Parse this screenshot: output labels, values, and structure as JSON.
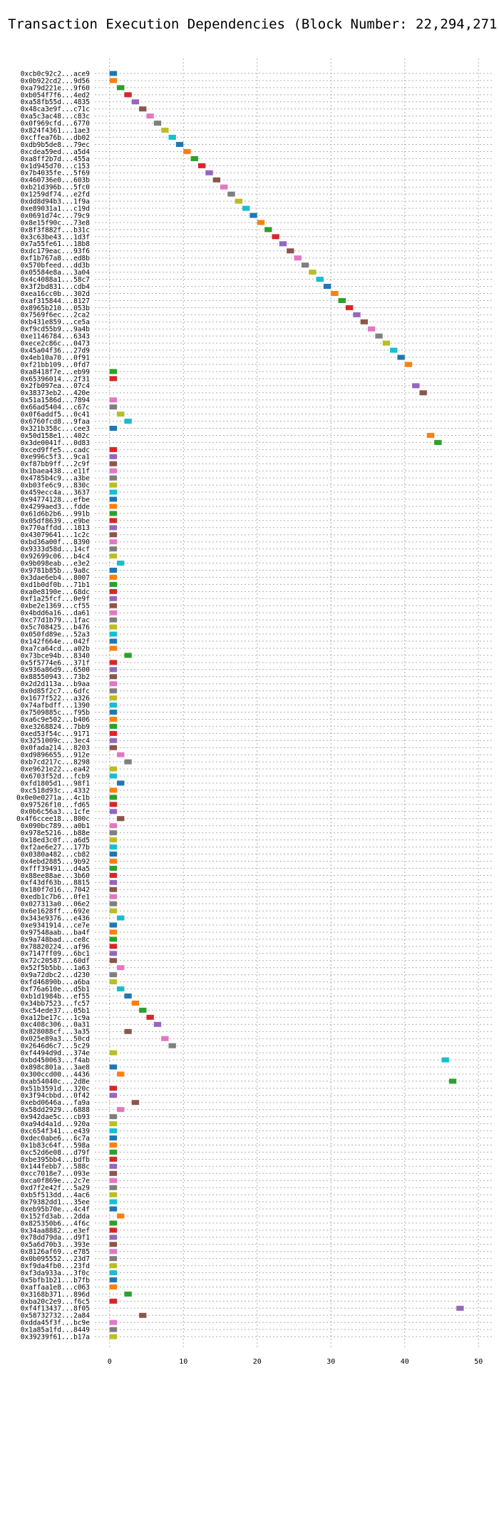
{
  "chart_data": {
    "type": "bar",
    "orientation": "horizontal",
    "title": "Transaction Execution Dependencies (Block Number: 22,294,271)",
    "xlim": [
      -2,
      52
    ],
    "xticks": [
      0,
      10,
      20,
      30,
      40,
      50
    ],
    "grid": true,
    "palette": [
      "#1f77b4",
      "#ff7f0e",
      "#2ca02c",
      "#d62728",
      "#9467bd",
      "#8c564b",
      "#e377c2",
      "#7f7f7f",
      "#bcbd22",
      "#17becf"
    ],
    "bars": [
      {
        "label": "0xcb0c92c2...ace9",
        "start": 0,
        "end": 1
      },
      {
        "label": "0x0b922cd2...9d56",
        "start": 0,
        "end": 1
      },
      {
        "label": "0xa79d221e...9f60",
        "start": 1,
        "end": 2
      },
      {
        "label": "0xb054f7f6...4ed2",
        "start": 2,
        "end": 3
      },
      {
        "label": "0xa58fb55d...4835",
        "start": 3,
        "end": 4
      },
      {
        "label": "0x48ca3e9f...c71c",
        "start": 4,
        "end": 5
      },
      {
        "label": "0xa5c3ac48...c83c",
        "start": 5,
        "end": 6
      },
      {
        "label": "0x0f969cfd...6770",
        "start": 6,
        "end": 7
      },
      {
        "label": "0x824f4361...1ae3",
        "start": 7,
        "end": 8
      },
      {
        "label": "0xcffea76b...db02",
        "start": 8,
        "end": 9
      },
      {
        "label": "0xdb9b5de8...79ec",
        "start": 9,
        "end": 10
      },
      {
        "label": "0xcdea59ed...a5d4",
        "start": 10,
        "end": 11
      },
      {
        "label": "0xa8ff2b7d...455a",
        "start": 11,
        "end": 12
      },
      {
        "label": "0x1d945d70...c153",
        "start": 12,
        "end": 13
      },
      {
        "label": "0x7b4035fe...5f69",
        "start": 13,
        "end": 14
      },
      {
        "label": "0x460736e0...603b",
        "start": 14,
        "end": 15
      },
      {
        "label": "0xb21d396b...5fc0",
        "start": 15,
        "end": 16
      },
      {
        "label": "0x1259df74...e2fd",
        "start": 16,
        "end": 17
      },
      {
        "label": "0xdd8d94b3...1f9a",
        "start": 17,
        "end": 18
      },
      {
        "label": "0xe89031a1...c19d",
        "start": 18,
        "end": 19
      },
      {
        "label": "0x0691d74c...79c9",
        "start": 19,
        "end": 20
      },
      {
        "label": "0x8e15f90c...73e8",
        "start": 20,
        "end": 21
      },
      {
        "label": "0x8f3f882f...b31c",
        "start": 21,
        "end": 22
      },
      {
        "label": "0x3c63be43...1d3f",
        "start": 22,
        "end": 23
      },
      {
        "label": "0x7a55fe61...18b8",
        "start": 23,
        "end": 24
      },
      {
        "label": "0xdc179eac...93f6",
        "start": 24,
        "end": 25
      },
      {
        "label": "0xf1b767a8...ed8b",
        "start": 25,
        "end": 26
      },
      {
        "label": "0x570bfeed...dd3b",
        "start": 26,
        "end": 27
      },
      {
        "label": "0x05584e8a...3a04",
        "start": 27,
        "end": 28
      },
      {
        "label": "0x4c4088a1...58c7",
        "start": 28,
        "end": 29
      },
      {
        "label": "0x3f2bd831...cdb4",
        "start": 29,
        "end": 30
      },
      {
        "label": "0xea16cc0b...302d",
        "start": 30,
        "end": 31
      },
      {
        "label": "0xaf315844...8127",
        "start": 31,
        "end": 32
      },
      {
        "label": "0x8965b210...053b",
        "start": 32,
        "end": 33
      },
      {
        "label": "0x7569f6ec...2ca2",
        "start": 33,
        "end": 34
      },
      {
        "label": "0xb431e859...ce5a",
        "start": 34,
        "end": 35
      },
      {
        "label": "0xf9cd55b9...9a4b",
        "start": 35,
        "end": 36
      },
      {
        "label": "0xe1146784...6343",
        "start": 36,
        "end": 37
      },
      {
        "label": "0xece2c86c...0473",
        "start": 37,
        "end": 38
      },
      {
        "label": "0x45a04f36...27d9",
        "start": 38,
        "end": 39
      },
      {
        "label": "0x4eb10a70...0f91",
        "start": 39,
        "end": 40
      },
      {
        "label": "0xf21bb109...0fd7",
        "start": 40,
        "end": 41
      },
      {
        "label": "0xa8418f7e...eb99",
        "start": 0,
        "end": 1
      },
      {
        "label": "0x65396014...2f31",
        "start": 0,
        "end": 1
      },
      {
        "label": "0x2fb097ea...07c4",
        "start": 41,
        "end": 42
      },
      {
        "label": "0x38373eb2...420e",
        "start": 42,
        "end": 43
      },
      {
        "label": "0x51a1586d...7894",
        "start": 0,
        "end": 1
      },
      {
        "label": "0x66ad5404...c67c",
        "start": 0,
        "end": 1
      },
      {
        "label": "0x0f6addf5...0c41",
        "start": 1,
        "end": 2
      },
      {
        "label": "0x6760fcd8...9faa",
        "start": 2,
        "end": 3
      },
      {
        "label": "0x321b358c...cee3",
        "start": 0,
        "end": 1
      },
      {
        "label": "0x50d158e1...402c",
        "start": 43,
        "end": 44
      },
      {
        "label": "0x3de0041f...0d83",
        "start": 44,
        "end": 45
      },
      {
        "label": "0xced9ffe5...cadc",
        "start": 0,
        "end": 1
      },
      {
        "label": "0xe996c5f3...9ca1",
        "start": 0,
        "end": 1
      },
      {
        "label": "0xf87bb9ff...2c9f",
        "start": 0,
        "end": 1
      },
      {
        "label": "0x1baea438...e11f",
        "start": 0,
        "end": 1
      },
      {
        "label": "0x4785b4c9...a3be",
        "start": 0,
        "end": 1
      },
      {
        "label": "0xb03fe6c9...830c",
        "start": 0,
        "end": 1
      },
      {
        "label": "0x459ecc4a...3637",
        "start": 0,
        "end": 1
      },
      {
        "label": "0x94774128...efbe",
        "start": 0,
        "end": 1
      },
      {
        "label": "0x4299aed3...fdde",
        "start": 0,
        "end": 1
      },
      {
        "label": "0x61d6b2b6...991b",
        "start": 0,
        "end": 1
      },
      {
        "label": "0x05df8639...e9be",
        "start": 0,
        "end": 1
      },
      {
        "label": "0x770affdd...1813",
        "start": 0,
        "end": 1
      },
      {
        "label": "0x43079641...1c2c",
        "start": 0,
        "end": 1
      },
      {
        "label": "0xbd36a00f...8390",
        "start": 0,
        "end": 1
      },
      {
        "label": "0x9333d58d...14cf",
        "start": 0,
        "end": 1
      },
      {
        "label": "0x92699c06...b4c4",
        "start": 0,
        "end": 1
      },
      {
        "label": "0x9b098eab...e3e2",
        "start": 1,
        "end": 2
      },
      {
        "label": "0x9781b85b...9a8c",
        "start": 0,
        "end": 1
      },
      {
        "label": "0x3dae6eb4...8007",
        "start": 0,
        "end": 1
      },
      {
        "label": "0xd1b0df0b...71b1",
        "start": 0,
        "end": 1
      },
      {
        "label": "0xa0e8190e...68dc",
        "start": 0,
        "end": 1
      },
      {
        "label": "0xf1a25fcf...0e9f",
        "start": 0,
        "end": 1
      },
      {
        "label": "0xbe2e1369...cf55",
        "start": 0,
        "end": 1
      },
      {
        "label": "0x4bdd6a16...da61",
        "start": 0,
        "end": 1
      },
      {
        "label": "0xc77d1b79...1fac",
        "start": 0,
        "end": 1
      },
      {
        "label": "0x5c708425...b476",
        "start": 0,
        "end": 1
      },
      {
        "label": "0x050fd89e...52a3",
        "start": 0,
        "end": 1
      },
      {
        "label": "0x142f664e...042f",
        "start": 0,
        "end": 1
      },
      {
        "label": "0xa7ca64cd...a02b",
        "start": 0,
        "end": 1
      },
      {
        "label": "0x73bce94b...8340",
        "start": 2,
        "end": 3
      },
      {
        "label": "0x5f5774e6...371f",
        "start": 0,
        "end": 1
      },
      {
        "label": "0x936a86d9...6500",
        "start": 0,
        "end": 1
      },
      {
        "label": "0x88550943...73b2",
        "start": 0,
        "end": 1
      },
      {
        "label": "0x2d2d113a...b9aa",
        "start": 0,
        "end": 1
      },
      {
        "label": "0x0d85f2c7...6dfc",
        "start": 0,
        "end": 1
      },
      {
        "label": "0x1677f522...a326",
        "start": 0,
        "end": 1
      },
      {
        "label": "0x74afbdff...1390",
        "start": 0,
        "end": 1
      },
      {
        "label": "0x7509885c...f95b",
        "start": 0,
        "end": 1
      },
      {
        "label": "0xa6c9e502...b406",
        "start": 0,
        "end": 1
      },
      {
        "label": "0xe3268824...7bb9",
        "start": 0,
        "end": 1
      },
      {
        "label": "0xed53f54c...9171",
        "start": 0,
        "end": 1
      },
      {
        "label": "0x3251009c...3ec4",
        "start": 0,
        "end": 1
      },
      {
        "label": "0x0fada214...8203",
        "start": 0,
        "end": 1
      },
      {
        "label": "0xd9896655...912e",
        "start": 1,
        "end": 2
      },
      {
        "label": "0xb7cd217c...8298",
        "start": 2,
        "end": 3
      },
      {
        "label": "0xe9621e22...ea42",
        "start": 0,
        "end": 1
      },
      {
        "label": "0x6703f52d...fcb9",
        "start": 0,
        "end": 1
      },
      {
        "label": "0xfd1805d1...98f1",
        "start": 1,
        "end": 2
      },
      {
        "label": "0xc518d93c...4332",
        "start": 0,
        "end": 1
      },
      {
        "label": "0x0e0e0271a...4c1b",
        "start": 0,
        "end": 1
      },
      {
        "label": "0x97526f10...fd65",
        "start": 0,
        "end": 1
      },
      {
        "label": "0x0b6c56a3...1cfe",
        "start": 0,
        "end": 1
      },
      {
        "label": "0x4f6ccee18...800c",
        "start": 1,
        "end": 2
      },
      {
        "label": "0x090bc789...a0b1",
        "start": 0,
        "end": 1
      },
      {
        "label": "0x978e5216...b88e",
        "start": 0,
        "end": 1
      },
      {
        "label": "0x18ed3c0f...a6d5",
        "start": 0,
        "end": 1
      },
      {
        "label": "0xf2ae6e27...177b",
        "start": 0,
        "end": 1
      },
      {
        "label": "0x0380a482...cb82",
        "start": 0,
        "end": 1
      },
      {
        "label": "0x4ebd2885...9b92",
        "start": 0,
        "end": 1
      },
      {
        "label": "0xfff39491...d4a5",
        "start": 0,
        "end": 1
      },
      {
        "label": "0x88ee88ae...3b60",
        "start": 0,
        "end": 1
      },
      {
        "label": "0xf43df63b...8815",
        "start": 0,
        "end": 1
      },
      {
        "label": "0x180f7d16...7042",
        "start": 0,
        "end": 1
      },
      {
        "label": "0xedb1c7b6...0fe1",
        "start": 0,
        "end": 1
      },
      {
        "label": "0x027313a0...06e2",
        "start": 0,
        "end": 1
      },
      {
        "label": "0x6e1628ff...692e",
        "start": 0,
        "end": 1
      },
      {
        "label": "0x343e9376...e436",
        "start": 1,
        "end": 2
      },
      {
        "label": "0xe9341914...ce7e",
        "start": 0,
        "end": 1
      },
      {
        "label": "0x97548aab...ba4f",
        "start": 0,
        "end": 1
      },
      {
        "label": "0x9a748bad...ce8c",
        "start": 0,
        "end": 1
      },
      {
        "label": "0x78820224...af96",
        "start": 0,
        "end": 1
      },
      {
        "label": "0x7147ff09...6bc1",
        "start": 0,
        "end": 1
      },
      {
        "label": "0x72c20587...60df",
        "start": 0,
        "end": 1
      },
      {
        "label": "0x52f5b5bb...1a63",
        "start": 1,
        "end": 2
      },
      {
        "label": "0x9a72dbc2...d230",
        "start": 0,
        "end": 1
      },
      {
        "label": "0xfd46890b...a6ba",
        "start": 0,
        "end": 1
      },
      {
        "label": "0xf76a610e...d5b1",
        "start": 1,
        "end": 2
      },
      {
        "label": "0xb1d1984b...ef55",
        "start": 2,
        "end": 3
      },
      {
        "label": "0x34bb7523...fc57",
        "start": 3,
        "end": 4
      },
      {
        "label": "0xc54ede37...05b1",
        "start": 4,
        "end": 5
      },
      {
        "label": "0xa12be17c...1c9a",
        "start": 5,
        "end": 6
      },
      {
        "label": "0xc408c306...0a31",
        "start": 6,
        "end": 7
      },
      {
        "label": "0x828088cf...3a35",
        "start": 2,
        "end": 3
      },
      {
        "label": "0x025e89a3...50cd",
        "start": 7,
        "end": 8
      },
      {
        "label": "0x2646d6c7...5c29",
        "start": 8,
        "end": 9
      },
      {
        "label": "0xf4494d9d...374e",
        "start": 0,
        "end": 1
      },
      {
        "label": "0xbd450063...f4ab",
        "start": 45,
        "end": 46
      },
      {
        "label": "0x898c801a...3ae8",
        "start": 0,
        "end": 1
      },
      {
        "label": "0x300ccd00...4436",
        "start": 1,
        "end": 2
      },
      {
        "label": "0xab54040c...2d8e",
        "start": 46,
        "end": 47
      },
      {
        "label": "0x51b3591d...320c",
        "start": 0,
        "end": 1
      },
      {
        "label": "0x3f94cbbd...0f42",
        "start": 0,
        "end": 1
      },
      {
        "label": "0xebd0646a...fa9a",
        "start": 3,
        "end": 4
      },
      {
        "label": "0x58dd2929...6888",
        "start": 1,
        "end": 2
      },
      {
        "label": "0x942dae5c...cb93",
        "start": 0,
        "end": 1
      },
      {
        "label": "0xa94d4a1d...920a",
        "start": 0,
        "end": 1
      },
      {
        "label": "0xc654f341...e439",
        "start": 0,
        "end": 1
      },
      {
        "label": "0xdec0abe6...6c7a",
        "start": 0,
        "end": 1
      },
      {
        "label": "0x1b83c64f...598a",
        "start": 0,
        "end": 1
      },
      {
        "label": "0xc52d6e08...d79f",
        "start": 0,
        "end": 1
      },
      {
        "label": "0xbe395bb4...bdfb",
        "start": 0,
        "end": 1
      },
      {
        "label": "0x144febb7...588c",
        "start": 0,
        "end": 1
      },
      {
        "label": "0xcc7018e7...093e",
        "start": 0,
        "end": 1
      },
      {
        "label": "0xca0f869e...2c7e",
        "start": 0,
        "end": 1
      },
      {
        "label": "0xd7f2e42f...5a29",
        "start": 0,
        "end": 1
      },
      {
        "label": "0xb5f513dd...4ac6",
        "start": 0,
        "end": 1
      },
      {
        "label": "0x79382dd1...35ee",
        "start": 0,
        "end": 1
      },
      {
        "label": "0xeb95b70e...4c4f",
        "start": 0,
        "end": 1
      },
      {
        "label": "0x152fd3ab...2dda",
        "start": 1,
        "end": 2
      },
      {
        "label": "0x825350b6...4f6c",
        "start": 0,
        "end": 1
      },
      {
        "label": "0x34aa8882...e3ef",
        "start": 0,
        "end": 1
      },
      {
        "label": "0x78dd79da...d9f1",
        "start": 0,
        "end": 1
      },
      {
        "label": "0x5a6d70b3...393e",
        "start": 0,
        "end": 1
      },
      {
        "label": "0x8126af69...e785",
        "start": 0,
        "end": 1
      },
      {
        "label": "0x0b095552...23d7",
        "start": 0,
        "end": 1
      },
      {
        "label": "0xf9da4fb0...23fd",
        "start": 0,
        "end": 1
      },
      {
        "label": "0xf3da933a...3f0c",
        "start": 0,
        "end": 1
      },
      {
        "label": "0x5bfb1b21...b7fb",
        "start": 0,
        "end": 1
      },
      {
        "label": "0xaffaa1e8...c063",
        "start": 0,
        "end": 1
      },
      {
        "label": "0x3168b371...896d",
        "start": 2,
        "end": 3
      },
      {
        "label": "0xba20c2e9...f6c5",
        "start": 0,
        "end": 1
      },
      {
        "label": "0xf4f13437...8f05",
        "start": 47,
        "end": 48
      },
      {
        "label": "0x58732732...2a84",
        "start": 4,
        "end": 5
      },
      {
        "label": "0xdda45f3f...bc9e",
        "start": 0,
        "end": 1
      },
      {
        "label": "0x1a85a1fd...8449",
        "start": 0,
        "end": 1
      },
      {
        "label": "0x39239f61...b17a",
        "start": 0,
        "end": 1
      }
    ]
  }
}
